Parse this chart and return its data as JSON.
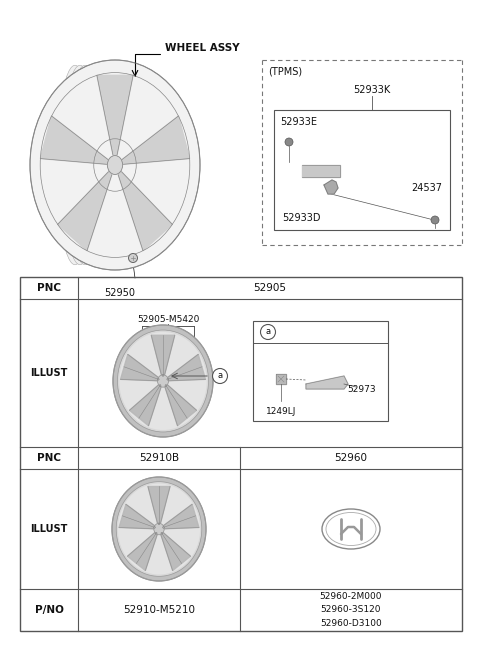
{
  "bg_color": "#ffffff",
  "text_color": "#111111",
  "top_section": {
    "wheel_assy_label": "WHEEL ASSY",
    "part_52950": "52950",
    "tpms_label": "(TPMS)",
    "tpms_52933K": "52933K",
    "tpms_52933E": "52933E",
    "tpms_24537": "24537",
    "tpms_52933D": "52933D"
  },
  "table": {
    "pnc1": "PNC",
    "val1": "52905",
    "illust1": "ILLUST",
    "part_label": "52905-M5420",
    "sub_a": "a",
    "sub_1249LJ": "1249LJ",
    "sub_52973": "52973",
    "pnc2": "PNC",
    "col1_pnc": "52910B",
    "col2_pnc": "52960",
    "illust2": "ILLUST",
    "pno": "P/NO",
    "pno_col1": "52910-M5210",
    "pno_col2": "52960-2M000\n52960-3S120\n52960-D3100"
  },
  "colors": {
    "wheel_gray": "#c0c0c0",
    "wheel_dark": "#999999",
    "spoke_fill": "#b8b8b8",
    "line": "#555555",
    "dashed": "#666666"
  }
}
